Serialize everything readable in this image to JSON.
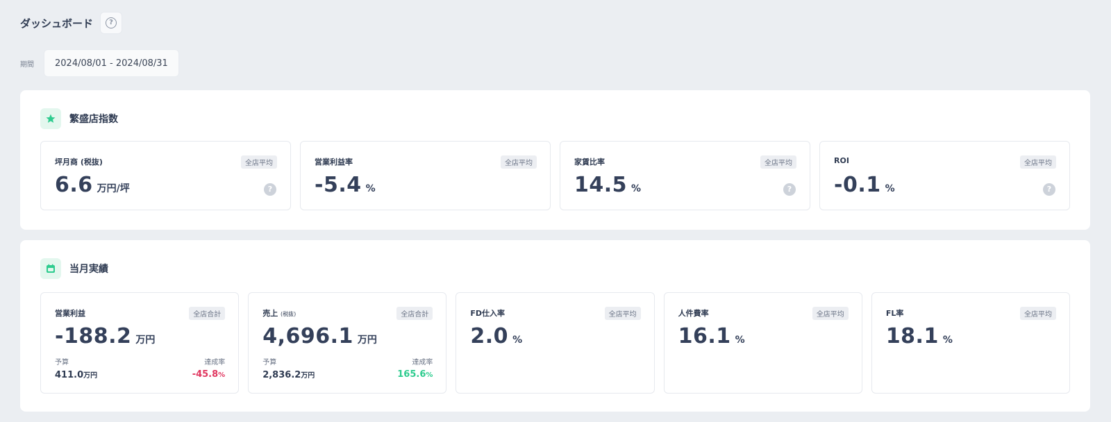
{
  "header": {
    "title": "ダッシュボード"
  },
  "period": {
    "label": "期間",
    "value": "2024/08/01 - 2024/08/31"
  },
  "prosperity": {
    "title": "繁盛店指数",
    "cards": [
      {
        "label": "坪月商",
        "label_small": "(税抜)",
        "badge": "全店平均",
        "value": "6.6",
        "unit": "万円/坪",
        "help": "?"
      },
      {
        "label": "営業利益率",
        "badge": "全店平均",
        "value": "-5.4",
        "unit": "%"
      },
      {
        "label": "家賃比率",
        "badge": "全店平均",
        "value": "14.5",
        "unit": "%",
        "help": "?"
      },
      {
        "label": "ROI",
        "badge": "全店平均",
        "value": "-0.1",
        "unit": "%",
        "help": "?"
      }
    ]
  },
  "monthly": {
    "title": "当月実績",
    "cards": [
      {
        "label": "営業利益",
        "badge": "全店合計",
        "value": "-188.2",
        "unit": "万円",
        "budget_label": "予算",
        "budget_value": "411.0",
        "budget_unit": "万円",
        "rate_label": "達成率",
        "rate_value": "-45.8",
        "rate_unit": "%",
        "rate_color": "#e0365f"
      },
      {
        "label": "売上",
        "label_small": "(税抜)",
        "badge": "全店合計",
        "value": "4,696.1",
        "unit": "万円",
        "budget_label": "予算",
        "budget_value": "2,836.2",
        "budget_unit": "万円",
        "rate_label": "達成率",
        "rate_value": "165.6",
        "rate_unit": "%",
        "rate_color": "#2ecc8f"
      },
      {
        "label": "FD仕入率",
        "badge": "全店平均",
        "value": "2.0",
        "unit": "%"
      },
      {
        "label": "人件費率",
        "badge": "全店平均",
        "value": "16.1",
        "unit": "%"
      },
      {
        "label": "FL率",
        "badge": "全店平均",
        "value": "18.1",
        "unit": "%"
      }
    ]
  },
  "icons": {
    "help": "?",
    "prosperity": "star-icon",
    "monthly": "calendar-icon"
  },
  "colors": {
    "accent": "#2ecc8f",
    "negative": "#e0365f",
    "text": "#2f3b52",
    "background": "#ebeef2"
  }
}
